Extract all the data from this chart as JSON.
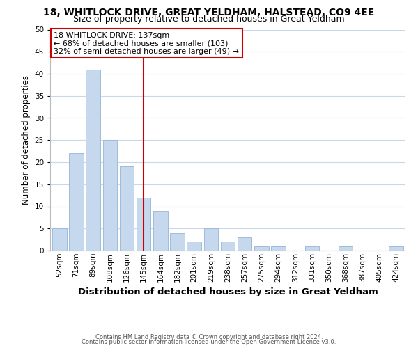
{
  "title1": "18, WHITLOCK DRIVE, GREAT YELDHAM, HALSTEAD, CO9 4EE",
  "title2": "Size of property relative to detached houses in Great Yeldham",
  "xlabel": "Distribution of detached houses by size in Great Yeldham",
  "ylabel": "Number of detached properties",
  "categories": [
    "52sqm",
    "71sqm",
    "89sqm",
    "108sqm",
    "126sqm",
    "145sqm",
    "164sqm",
    "182sqm",
    "201sqm",
    "219sqm",
    "238sqm",
    "257sqm",
    "275sqm",
    "294sqm",
    "312sqm",
    "331sqm",
    "350sqm",
    "368sqm",
    "387sqm",
    "405sqm",
    "424sqm"
  ],
  "values": [
    5,
    22,
    41,
    25,
    19,
    12,
    9,
    4,
    2,
    5,
    2,
    3,
    1,
    1,
    0,
    1,
    0,
    1,
    0,
    0,
    1
  ],
  "bar_color": "#c5d8ed",
  "bar_edge_color": "#a0bcd8",
  "vline_color": "#cc0000",
  "vline_index": 5,
  "annotation_title": "18 WHITLOCK DRIVE: 137sqm",
  "annotation_line1": "← 68% of detached houses are smaller (103)",
  "annotation_line2": "32% of semi-detached houses are larger (49) →",
  "box_color": "#ffffff",
  "box_edge_color": "#cc0000",
  "ylim": [
    0,
    50
  ],
  "yticks": [
    0,
    5,
    10,
    15,
    20,
    25,
    30,
    35,
    40,
    45,
    50
  ],
  "footer1": "Contains HM Land Registry data © Crown copyright and database right 2024.",
  "footer2": "Contains public sector information licensed under the Open Government Licence v3.0.",
  "bg_color": "#ffffff",
  "grid_color": "#c8d8e8",
  "title1_fontsize": 10,
  "title2_fontsize": 9,
  "xlabel_fontsize": 9.5,
  "ylabel_fontsize": 8.5,
  "annotation_fontsize": 8,
  "tick_fontsize": 7.5,
  "footer_fontsize": 6
}
